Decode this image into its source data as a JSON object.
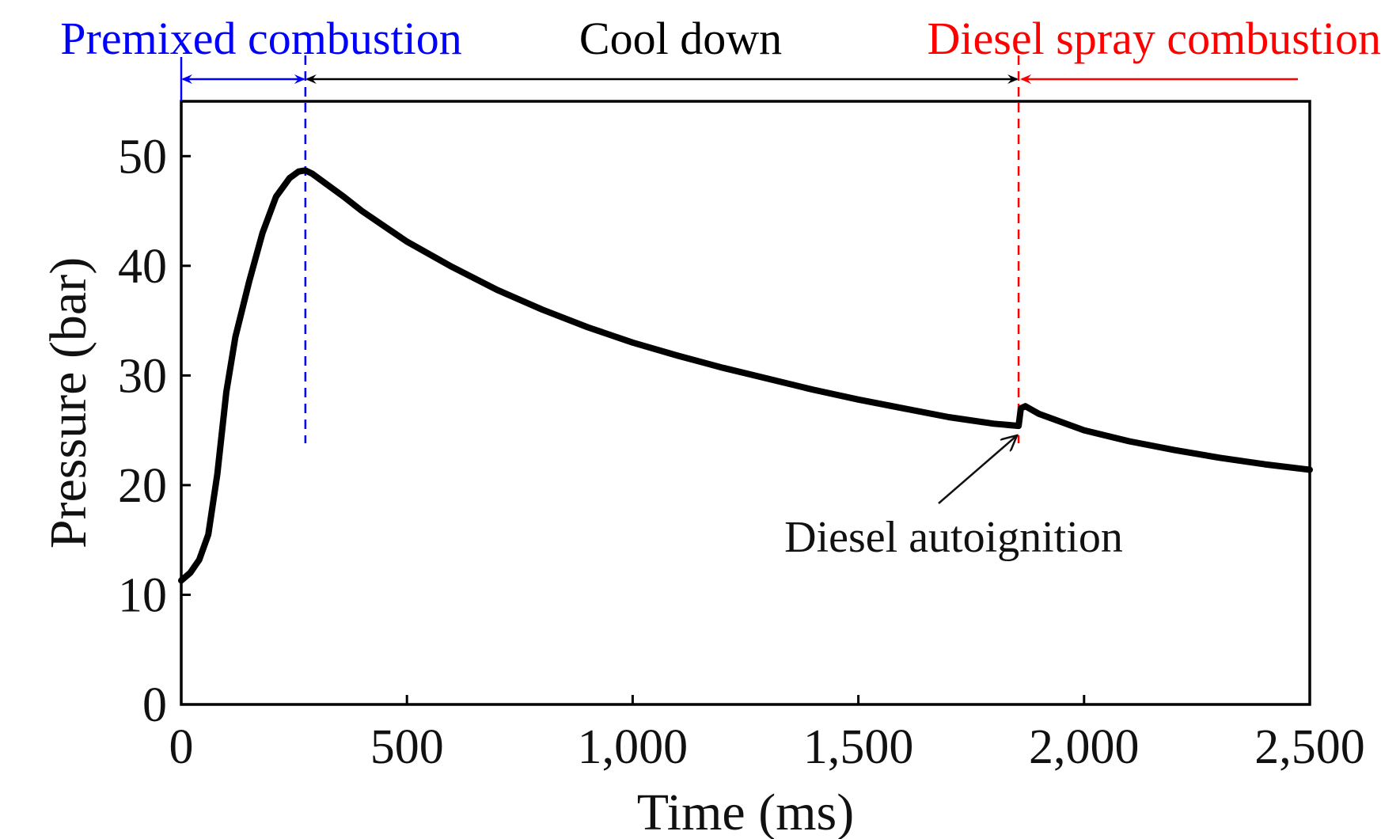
{
  "chart_data": {
    "type": "line",
    "title": "",
    "xlabel": "Time (ms)",
    "ylabel": "Pressure (bar)",
    "xlim": [
      0,
      2500
    ],
    "ylim": [
      0,
      55
    ],
    "x_ticks": [
      0,
      500,
      1000,
      1500,
      2000,
      2500
    ],
    "x_tick_labels": [
      "0",
      "500",
      "1,000",
      "1,500",
      "2,000",
      "2,500"
    ],
    "y_ticks": [
      0,
      10,
      20,
      30,
      40,
      50
    ],
    "y_tick_labels": [
      "0",
      "10",
      "20",
      "30",
      "40",
      "50"
    ],
    "grid": false,
    "legend": "none",
    "series": [
      {
        "color": "#000000",
        "x": [
          0,
          20,
          40,
          60,
          80,
          100,
          120,
          150,
          180,
          210,
          240,
          260,
          275,
          290,
          320,
          360,
          400,
          450,
          500,
          600,
          700,
          800,
          900,
          1000,
          1100,
          1200,
          1300,
          1400,
          1500,
          1600,
          1700,
          1800,
          1855,
          1860,
          1870,
          1900,
          2000,
          2100,
          2200,
          2300,
          2400,
          2500
        ],
        "y": [
          11.3,
          12.0,
          13.2,
          15.5,
          21.0,
          28.5,
          33.5,
          38.5,
          43.0,
          46.3,
          48.0,
          48.6,
          48.7,
          48.4,
          47.5,
          46.3,
          45.0,
          43.6,
          42.2,
          39.9,
          37.8,
          36.0,
          34.4,
          33.0,
          31.8,
          30.7,
          29.7,
          28.7,
          27.8,
          27.0,
          26.2,
          25.6,
          25.4,
          27.0,
          27.2,
          26.5,
          25.0,
          24.0,
          23.2,
          22.5,
          21.9,
          21.4
        ]
      }
    ],
    "phases": [
      {
        "label": "Premixed combustion",
        "x_start": 0,
        "x_end": 275,
        "color": "#0000ff"
      },
      {
        "label": "Cool down",
        "x_start": 275,
        "x_end": 1855,
        "color": "#000000"
      },
      {
        "label": "Diesel spray combustion",
        "x_start": 1855,
        "x_end": 2500,
        "color": "#ff0000"
      }
    ],
    "boundary_lines": [
      {
        "x": 275,
        "color": "#0000ff"
      },
      {
        "x": 1855,
        "color": "#ff0000"
      }
    ],
    "annotations": [
      {
        "text": "Diesel autoignition",
        "x": 1855,
        "y": 25.4
      }
    ]
  }
}
